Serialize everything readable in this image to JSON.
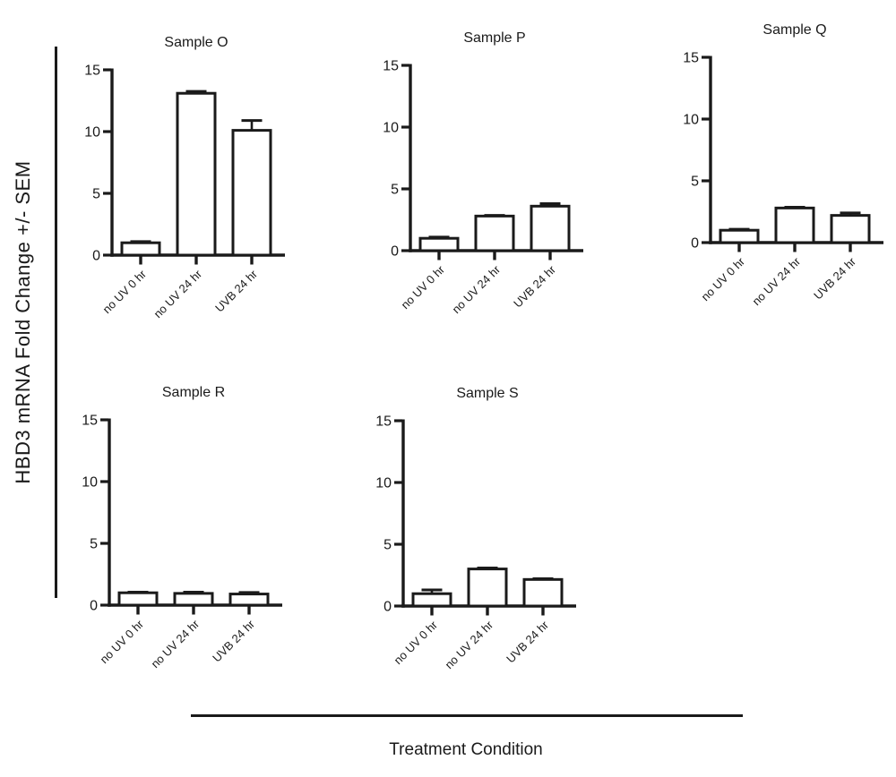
{
  "figure": {
    "ylabel": "HBD3 mRNA Fold Change +/- SEM",
    "xlabel": "Treatment Condition",
    "ink_color": "#1a1a1a",
    "background_color": "#ffffff",
    "bar_fill_color": "#ffffff"
  },
  "chart_data": [
    {
      "type": "bar",
      "title": "Sample O",
      "categories": [
        "no UV 0 hr",
        "no UV 24 hr",
        "UVB 24 hr"
      ],
      "values": [
        1.0,
        13.1,
        10.1
      ],
      "sem": [
        0.1,
        0.15,
        0.8
      ],
      "ylim": [
        0,
        15
      ],
      "yticks": [
        0,
        5,
        10,
        15
      ],
      "grid": false,
      "legend": "none"
    },
    {
      "type": "bar",
      "title": "Sample P",
      "categories": [
        "no UV 0 hr",
        "no UV 24 hr",
        "UVB 24 hr"
      ],
      "values": [
        1.0,
        2.8,
        3.6
      ],
      "sem": [
        0.1,
        0.05,
        0.2
      ],
      "ylim": [
        0,
        15
      ],
      "yticks": [
        0,
        5,
        10,
        15
      ],
      "grid": false,
      "legend": "none"
    },
    {
      "type": "bar",
      "title": "Sample Q",
      "categories": [
        "no UV 0 hr",
        "no UV 24 hr",
        "UVB 24 hr"
      ],
      "values": [
        1.0,
        2.8,
        2.2
      ],
      "sem": [
        0.08,
        0.06,
        0.2
      ],
      "ylim": [
        0,
        15
      ],
      "yticks": [
        0,
        5,
        10,
        15
      ],
      "grid": false,
      "legend": "none"
    },
    {
      "type": "bar",
      "title": "Sample R",
      "categories": [
        "no UV 0 hr",
        "no UV 24 hr",
        "UVB 24 hr"
      ],
      "values": [
        1.0,
        0.95,
        0.9
      ],
      "sem": [
        0.05,
        0.1,
        0.12
      ],
      "ylim": [
        0,
        15
      ],
      "yticks": [
        0,
        5,
        10,
        15
      ],
      "grid": false,
      "legend": "none"
    },
    {
      "type": "bar",
      "title": "Sample S",
      "categories": [
        "no UV 0 hr",
        "no UV 24 hr",
        "UVB 24 hr"
      ],
      "values": [
        1.0,
        3.0,
        2.15
      ],
      "sem": [
        0.3,
        0.08,
        0.06
      ],
      "ylim": [
        0,
        15
      ],
      "yticks": [
        0,
        5,
        10,
        15
      ],
      "grid": false,
      "legend": "none"
    }
  ]
}
